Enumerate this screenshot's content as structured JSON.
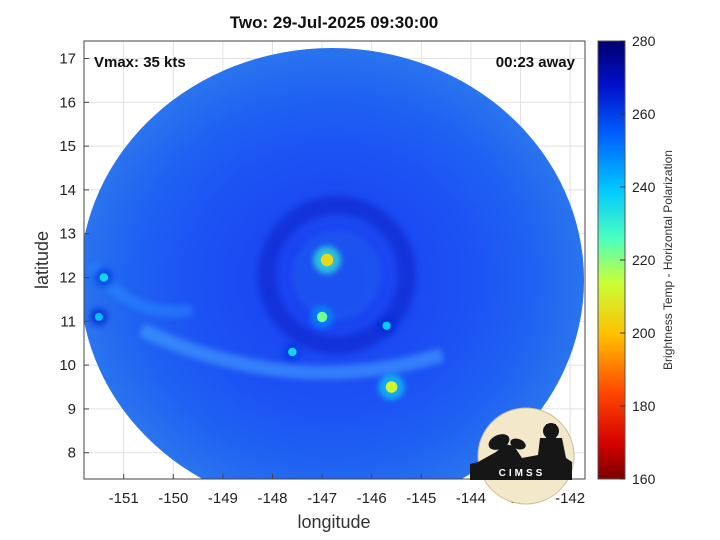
{
  "chart_data": {
    "type": "heatmap",
    "title": "Two: 29-Jul-2025 09:30:00",
    "xlabel": "longitude",
    "ylabel": "latitude",
    "xlim": [
      -151.8,
      -141.7
    ],
    "ylim": [
      7.4,
      17.4
    ],
    "x_ticks": [
      -151,
      -150,
      -149,
      -148,
      -147,
      -146,
      -145,
      -144,
      -143,
      -142
    ],
    "y_ticks": [
      8,
      9,
      10,
      11,
      12,
      13,
      14,
      15,
      16,
      17
    ],
    "grid": true,
    "annotations": {
      "vmax": "Vmax: 35 kts",
      "time_offset": "00:23 away"
    },
    "colorbar": {
      "label": "Brightness Temp - Horizontal Polarization",
      "range": [
        160,
        280
      ],
      "ticks": [
        280,
        260,
        240,
        220,
        200,
        180,
        160
      ]
    },
    "swath": {
      "center_lon": -146.8,
      "center_lat": 12.4,
      "background_value": 258
    },
    "features": [
      {
        "lon": -146.9,
        "lat": 12.4,
        "value": 205
      },
      {
        "lon": -147.0,
        "lat": 11.1,
        "value": 222
      },
      {
        "lon": -145.6,
        "lat": 9.5,
        "value": 212
      },
      {
        "lon": -147.6,
        "lat": 10.3,
        "value": 236
      },
      {
        "lon": -151.4,
        "lat": 12.0,
        "value": 236
      },
      {
        "lon": -145.7,
        "lat": 10.9,
        "value": 238
      },
      {
        "lon": -151.5,
        "lat": 11.1,
        "value": 240
      }
    ],
    "logo": {
      "text": "CIMSS"
    }
  }
}
